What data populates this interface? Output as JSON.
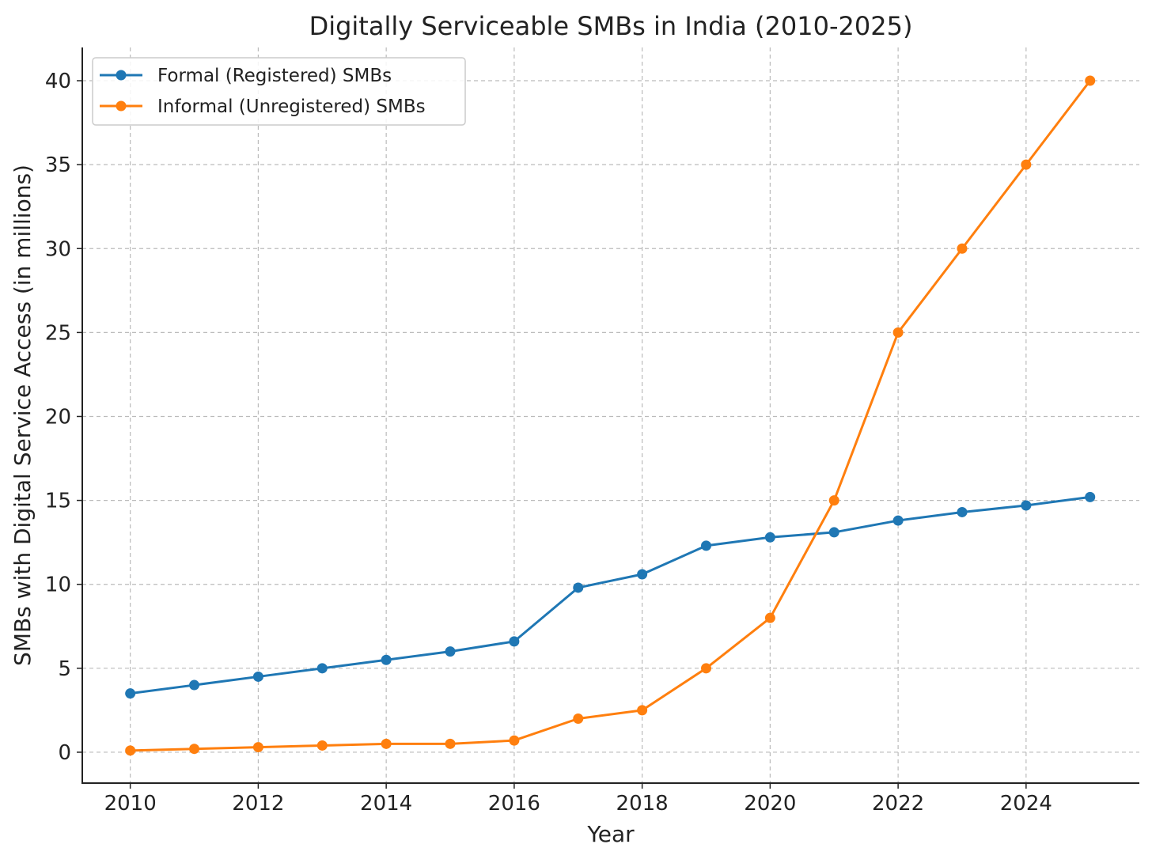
{
  "chart_data": {
    "type": "line",
    "title": "Digitally Serviceable SMBs in India (2010-2025)",
    "xlabel": "Year",
    "ylabel": "SMBs with Digital Service Access (in millions)",
    "x": [
      2010,
      2011,
      2012,
      2013,
      2014,
      2015,
      2016,
      2017,
      2018,
      2019,
      2020,
      2021,
      2022,
      2023,
      2024,
      2025
    ],
    "xticks": [
      2010,
      2012,
      2014,
      2016,
      2018,
      2020,
      2022,
      2024
    ],
    "yticks": [
      0,
      5,
      10,
      15,
      20,
      25,
      30,
      35,
      40
    ],
    "xlim": [
      2009.25,
      2025.77
    ],
    "ylim": [
      -1.84,
      41.98
    ],
    "grid": true,
    "legend_placement": "top-left",
    "series": [
      {
        "name": "Formal (Registered) SMBs",
        "color": "#1f77b4",
        "values": [
          3.5,
          4.0,
          4.5,
          5.0,
          5.5,
          6.0,
          6.6,
          9.8,
          10.6,
          12.3,
          12.8,
          13.1,
          13.8,
          14.3,
          14.7,
          15.2
        ]
      },
      {
        "name": "Informal (Unregistered) SMBs",
        "color": "#ff7f0e",
        "values": [
          0.1,
          0.2,
          0.3,
          0.4,
          0.5,
          0.5,
          0.7,
          2.0,
          2.5,
          5.0,
          8.0,
          15.0,
          25.0,
          30.0,
          35.0,
          40.0
        ]
      }
    ]
  }
}
